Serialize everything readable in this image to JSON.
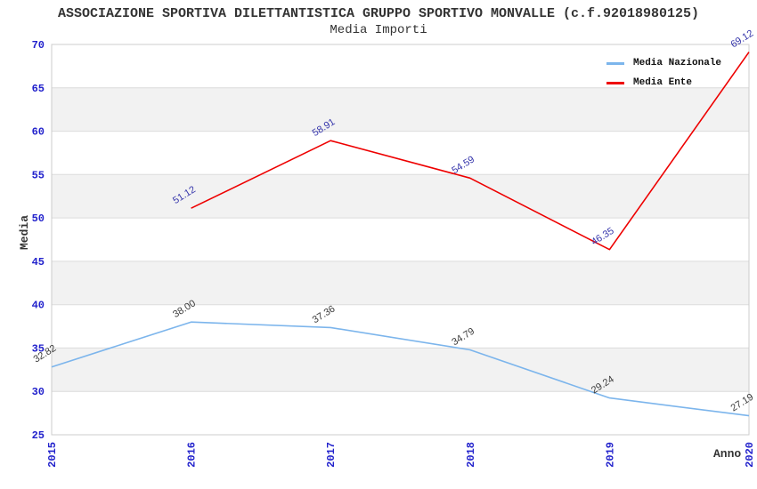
{
  "header": {
    "title": "ASSOCIAZIONE SPORTIVA DILETTANTISTICA GRUPPO SPORTIVO MONVALLE (c.f.92018980125)",
    "subtitle": "Media Importi"
  },
  "chart_data": {
    "type": "line",
    "title": "ASSOCIAZIONE SPORTIVA DILETTANTISTICA GRUPPO SPORTIVO MONVALLE (c.f.92018980125)",
    "subtitle": "Media Importi",
    "x": [
      "2015",
      "2016",
      "2017",
      "2018",
      "2019",
      "2020"
    ],
    "series": [
      {
        "name": "Media Nazionale",
        "color": "#7cb5ec",
        "label_color": "#3a3a3a",
        "values": [
          32.82,
          38.0,
          37.36,
          34.79,
          29.24,
          27.19
        ]
      },
      {
        "name": "Media Ente",
        "color": "#ee0000",
        "label_color": "#3333aa",
        "values": [
          null,
          51.12,
          58.91,
          54.59,
          46.35,
          69.12
        ]
      }
    ],
    "xlabel": "Anno",
    "ylabel": "Media",
    "ylim": [
      25,
      70
    ],
    "ytick_step": 5,
    "yticks": [
      25,
      30,
      35,
      40,
      45,
      50,
      55,
      60,
      65,
      70
    ],
    "tick_color": "#2222cc",
    "band_color": "#f2f2f2",
    "gridline_color": "#dcdcdc",
    "border_color": "#cccccc",
    "grid": "horizontal-bands",
    "legend_position": "top-right",
    "markers": false
  }
}
